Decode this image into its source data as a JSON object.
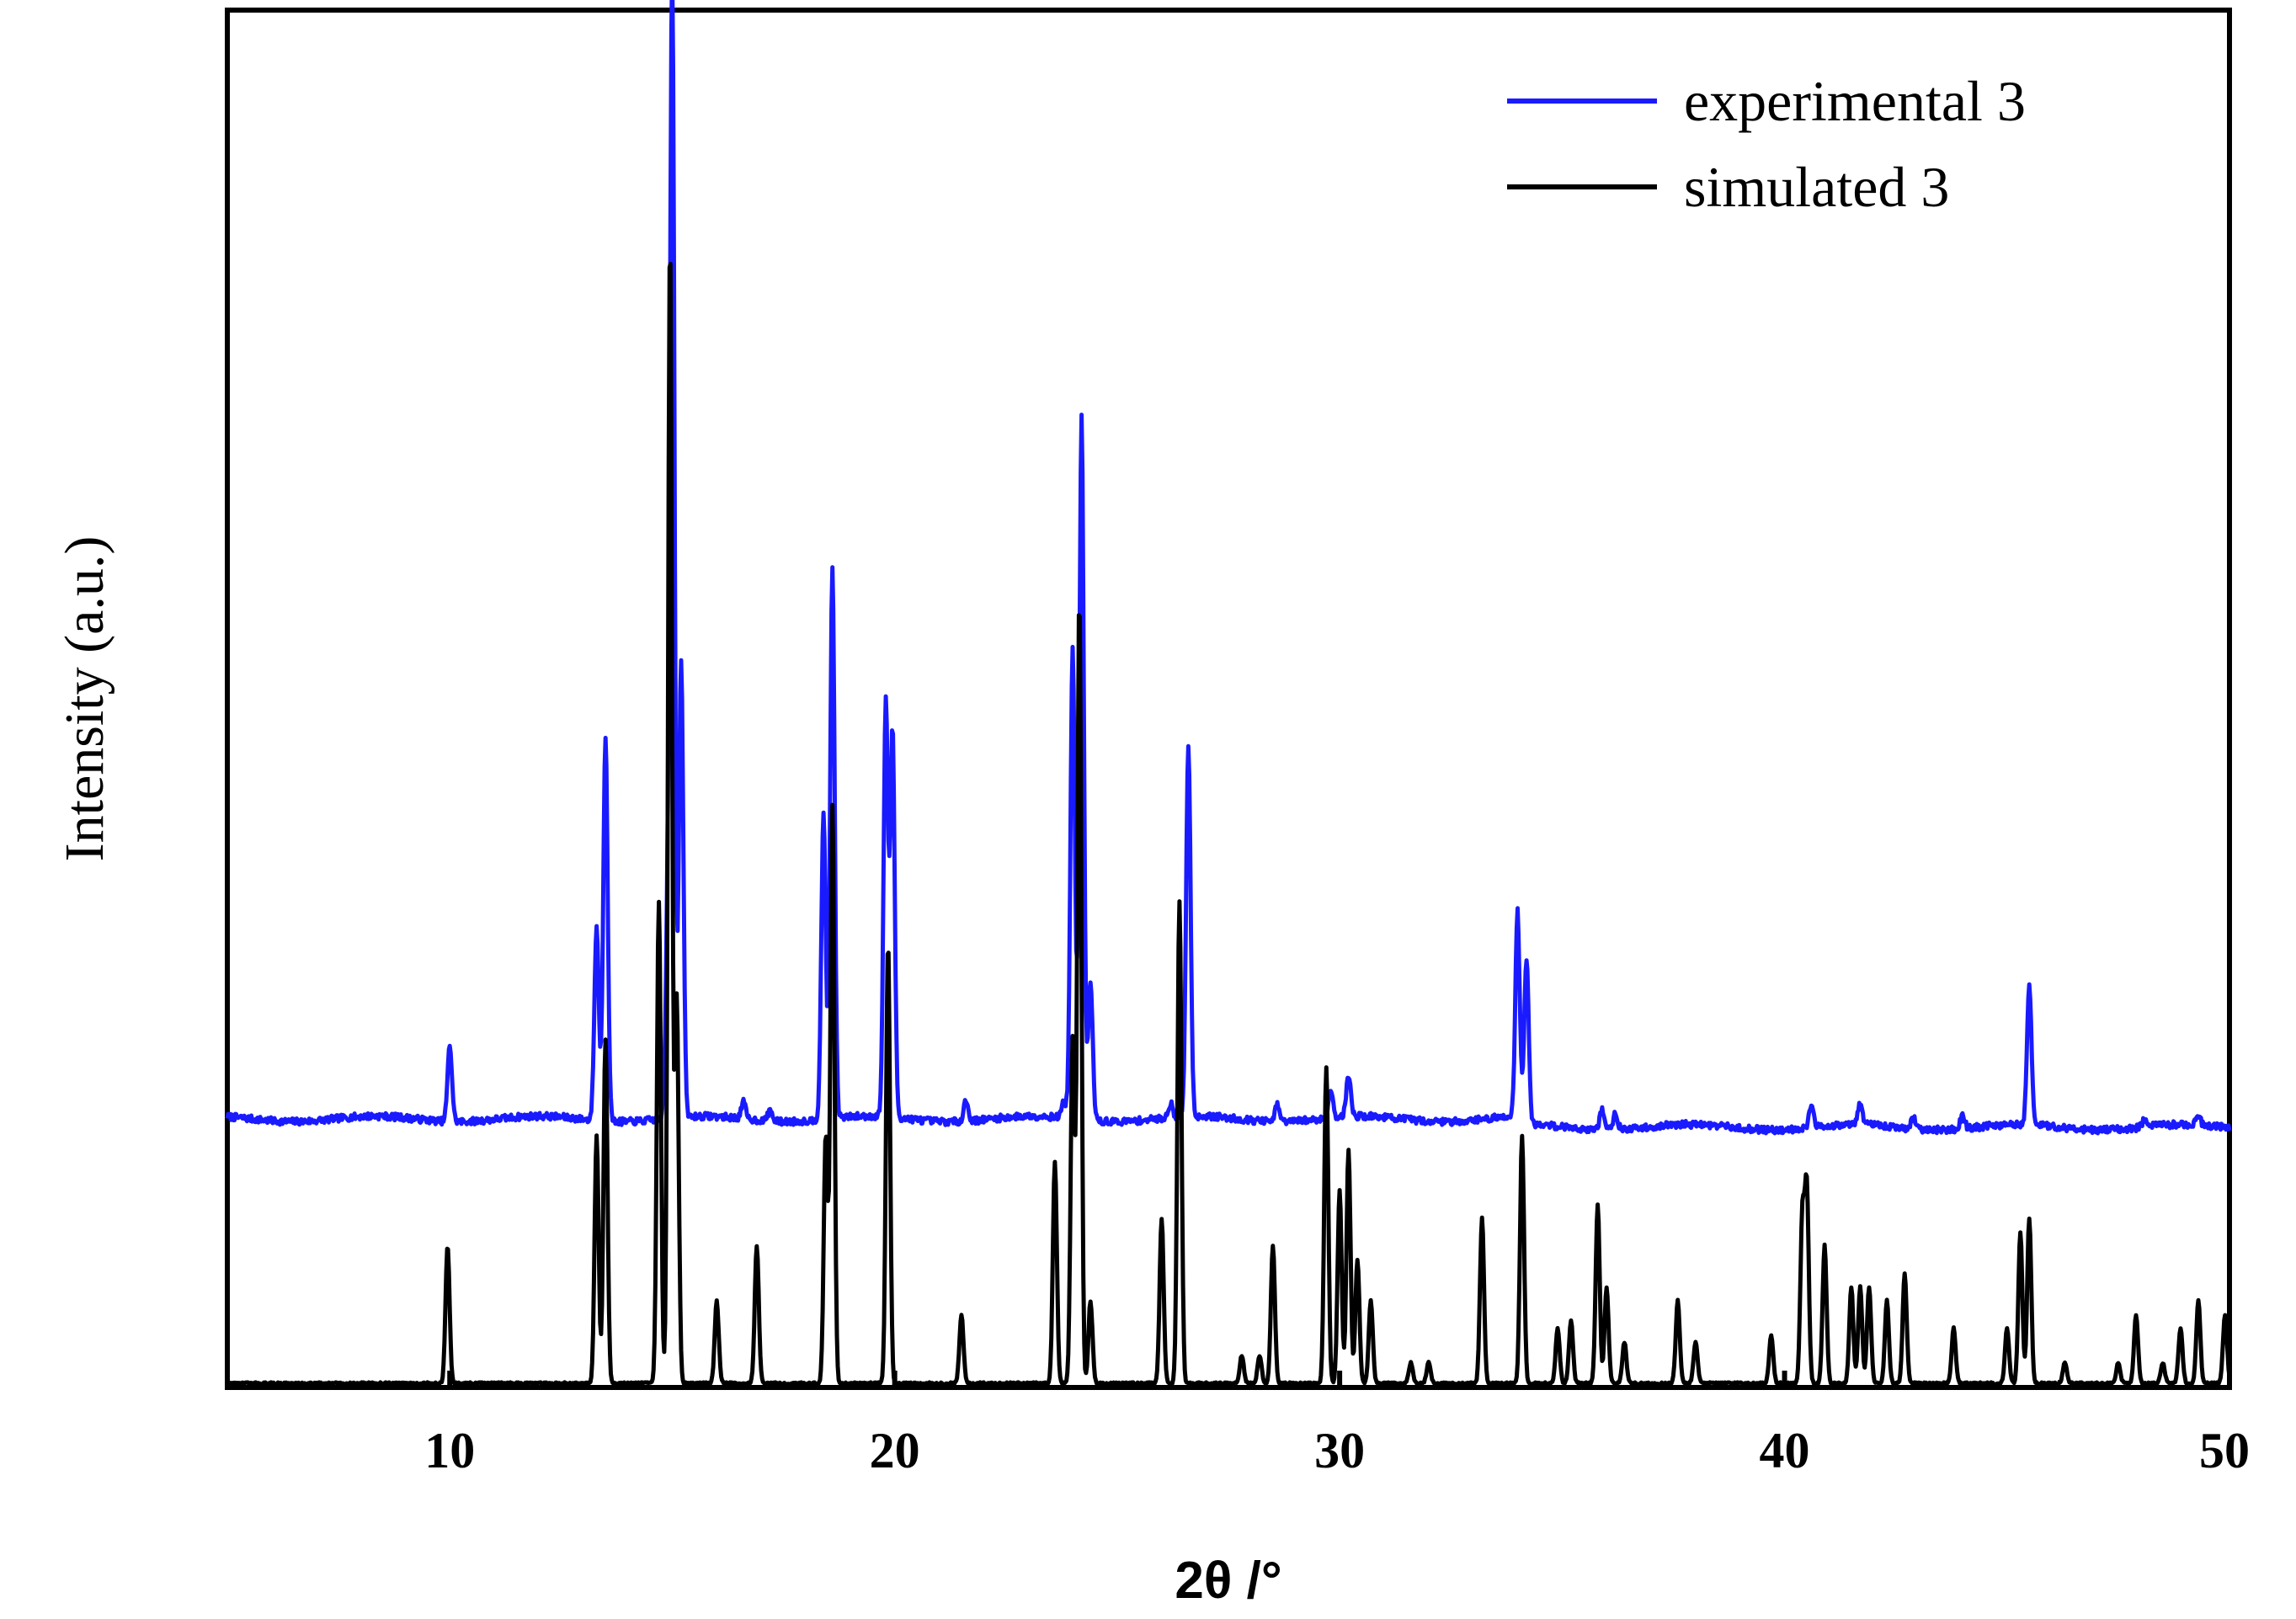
{
  "chart_data": {
    "type": "line",
    "title": "",
    "xlabel": "2θ /°",
    "ylabel": "Intensity (a.u.)",
    "xlim": [
      5,
      50
    ],
    "ylim": [
      0,
      100
    ],
    "xticks": [
      10,
      20,
      30,
      40,
      50
    ],
    "grid": false,
    "legend_position": "top-right",
    "series": [
      {
        "name": "experimental 3",
        "color": "#1a1aff",
        "baseline": 19.5,
        "peaks": [
          [
            10.0,
            5.5
          ],
          [
            13.3,
            14
          ],
          [
            13.5,
            28
          ],
          [
            14.9,
            12
          ],
          [
            15.0,
            82
          ],
          [
            15.2,
            33
          ],
          [
            16.6,
            1.2
          ],
          [
            17.2,
            0.8
          ],
          [
            18.4,
            22
          ],
          [
            18.6,
            40
          ],
          [
            19.8,
            30
          ],
          [
            19.95,
            28
          ],
          [
            21.6,
            1.5
          ],
          [
            23.8,
            1.2
          ],
          [
            24.0,
            34
          ],
          [
            24.2,
            51
          ],
          [
            24.4,
            10
          ],
          [
            26.2,
            1.0
          ],
          [
            26.6,
            27
          ],
          [
            28.6,
            1.2
          ],
          [
            29.8,
            2.0
          ],
          [
            30.2,
            3.0
          ],
          [
            34.0,
            15
          ],
          [
            34.2,
            12
          ],
          [
            35.9,
            1.5
          ],
          [
            36.2,
            1.2
          ],
          [
            40.6,
            1.5
          ],
          [
            41.7,
            1.5
          ],
          [
            42.9,
            0.8
          ],
          [
            44.0,
            1.0
          ],
          [
            45.5,
            10
          ],
          [
            48.1,
            0.6
          ],
          [
            49.3,
            0.6
          ]
        ]
      },
      {
        "name": "simulated 3",
        "color": "#000000",
        "baseline": 0.3,
        "peaks": [
          [
            9.95,
            10
          ],
          [
            13.3,
            18
          ],
          [
            13.5,
            25
          ],
          [
            14.7,
            35
          ],
          [
            14.95,
            83
          ],
          [
            15.1,
            28
          ],
          [
            16.0,
            6
          ],
          [
            16.9,
            10
          ],
          [
            18.45,
            18
          ],
          [
            18.6,
            42
          ],
          [
            19.85,
            32
          ],
          [
            21.5,
            5
          ],
          [
            23.6,
            16
          ],
          [
            24.0,
            25
          ],
          [
            24.15,
            57
          ],
          [
            24.4,
            6
          ],
          [
            26.0,
            12
          ],
          [
            26.4,
            35
          ],
          [
            27.8,
            2
          ],
          [
            28.2,
            2
          ],
          [
            28.5,
            10
          ],
          [
            29.7,
            23
          ],
          [
            30.0,
            14
          ],
          [
            30.2,
            17
          ],
          [
            30.4,
            9
          ],
          [
            30.7,
            6
          ],
          [
            31.6,
            1.5
          ],
          [
            32.0,
            1.5
          ],
          [
            33.2,
            12
          ],
          [
            34.1,
            18
          ],
          [
            34.9,
            4
          ],
          [
            35.2,
            4.5
          ],
          [
            35.8,
            13
          ],
          [
            36.0,
            7
          ],
          [
            36.4,
            3
          ],
          [
            37.6,
            6
          ],
          [
            38.0,
            3
          ],
          [
            39.7,
            3.5
          ],
          [
            40.4,
            12
          ],
          [
            40.5,
            14
          ],
          [
            40.9,
            10
          ],
          [
            41.5,
            7
          ],
          [
            41.7,
            7
          ],
          [
            41.9,
            7
          ],
          [
            42.3,
            6
          ],
          [
            42.7,
            8
          ],
          [
            43.8,
            4
          ],
          [
            45.0,
            4
          ],
          [
            45.3,
            11
          ],
          [
            45.5,
            12
          ],
          [
            46.3,
            1.5
          ],
          [
            47.5,
            1.5
          ],
          [
            47.9,
            5
          ],
          [
            48.5,
            1.5
          ],
          [
            48.9,
            4
          ],
          [
            49.3,
            6
          ],
          [
            49.9,
            5
          ]
        ]
      }
    ]
  }
}
